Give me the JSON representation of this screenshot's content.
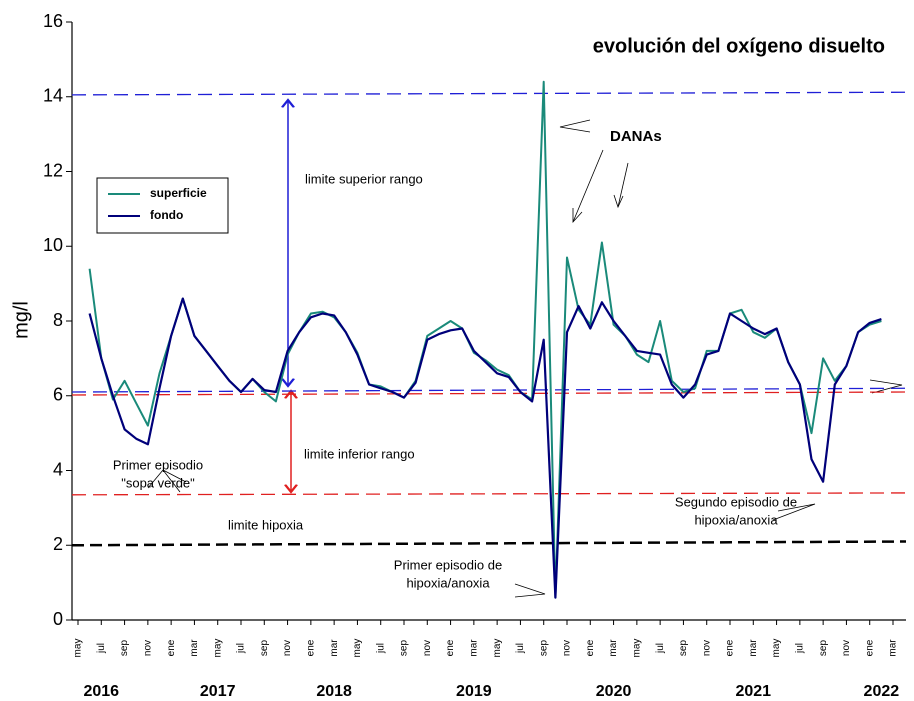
{
  "chart_data": {
    "type": "line",
    "title": "evolución del oxígeno disuelto",
    "y_label": "mg/l",
    "ylim": [
      0,
      16
    ],
    "yticks": [
      0,
      2,
      4,
      6,
      8,
      10,
      12,
      14,
      16
    ],
    "categories": [
      "may",
      null,
      "jul",
      null,
      "sep",
      null,
      "nov",
      null,
      "ene",
      null,
      "mar",
      null,
      "may",
      null,
      "jul",
      null,
      "sep",
      null,
      "nov",
      null,
      "ene",
      null,
      "mar",
      null,
      "may",
      null,
      "jul",
      null,
      "sep",
      null,
      "nov",
      null,
      "ene",
      null,
      "mar",
      null,
      "may",
      null,
      "jul",
      null,
      "sep",
      null,
      "nov",
      null,
      "ene",
      null,
      "mar",
      null,
      "may",
      null,
      "jul",
      null,
      "sep",
      null,
      "nov",
      null,
      "ene",
      null,
      "mar",
      null,
      "may",
      null,
      "jul",
      null,
      "sep",
      null,
      "nov",
      null,
      "ene",
      null,
      "mar"
    ],
    "year_labels": [
      "2016",
      "2017",
      "2018",
      "2019",
      "2020",
      "2021",
      "2022"
    ],
    "series": [
      {
        "name": "superficie",
        "color": "#1a8a7a",
        "values": [
          null,
          9.4,
          7.0,
          5.9,
          6.4,
          5.8,
          5.2,
          6.6,
          7.6,
          8.6,
          7.6,
          7.2,
          6.8,
          6.4,
          6.1,
          6.45,
          6.1,
          5.85,
          7.1,
          7.7,
          8.2,
          8.25,
          8.1,
          7.7,
          7.15,
          6.3,
          6.25,
          6.1,
          5.95,
          6.4,
          7.6,
          7.8,
          8.0,
          7.8,
          7.15,
          6.95,
          6.7,
          6.55,
          6.1,
          5.9,
          14.4,
          0.6,
          9.7,
          8.3,
          7.9,
          10.1,
          7.9,
          7.6,
          7.1,
          6.9,
          8.0,
          6.4,
          6.1,
          6.2,
          7.2,
          7.2,
          8.2,
          8.3,
          7.7,
          7.55,
          7.8,
          6.9,
          6.3,
          5.0,
          7.0,
          6.4,
          6.8,
          7.7,
          7.9,
          8.0,
          null
        ]
      },
      {
        "name": "fondo",
        "color": "#00007a",
        "values": [
          null,
          8.2,
          7.0,
          6.0,
          5.1,
          4.85,
          4.7,
          6.2,
          7.6,
          8.6,
          7.6,
          7.2,
          6.8,
          6.4,
          6.1,
          6.45,
          6.15,
          6.1,
          7.2,
          7.7,
          8.1,
          8.2,
          8.15,
          7.7,
          7.1,
          6.3,
          6.2,
          6.1,
          5.95,
          6.35,
          7.5,
          7.65,
          7.75,
          7.8,
          7.2,
          6.9,
          6.6,
          6.5,
          6.1,
          5.85,
          7.5,
          0.6,
          7.7,
          8.4,
          7.8,
          8.5,
          8.0,
          7.6,
          7.2,
          7.15,
          7.1,
          6.3,
          5.95,
          6.3,
          7.1,
          7.2,
          8.2,
          8.0,
          7.8,
          7.65,
          7.8,
          6.9,
          6.3,
          4.3,
          3.7,
          6.3,
          6.8,
          7.7,
          7.95,
          8.05,
          null
        ]
      }
    ],
    "reference_lines": [
      {
        "color": "#1f1fd6",
        "values": [
          14.05,
          14.12
        ]
      },
      {
        "color": "#1f1fd6",
        "values": [
          6.1,
          6.2
        ]
      },
      {
        "color": "#e02020",
        "values": [
          6.02,
          6.1
        ]
      },
      {
        "color": "#e02020",
        "values": [
          3.35,
          3.4
        ]
      },
      {
        "color": "#000000",
        "values": [
          2.0,
          2.1
        ]
      }
    ],
    "annotations": [
      {
        "lines": [
          "limite superior rango"
        ]
      },
      {
        "lines": [
          "DANAs"
        ]
      },
      {
        "lines": [
          "limite inferior rango"
        ]
      },
      {
        "lines": [
          "limite hipoxia"
        ]
      },
      {
        "lines": [
          "Primer episodio",
          "\"sopa verde\""
        ]
      },
      {
        "lines": [
          "Primer episodio de",
          "hipoxia/anoxia"
        ]
      },
      {
        "lines": [
          "Segundo episodio de",
          "hipoxia/anoxia"
        ]
      }
    ]
  }
}
